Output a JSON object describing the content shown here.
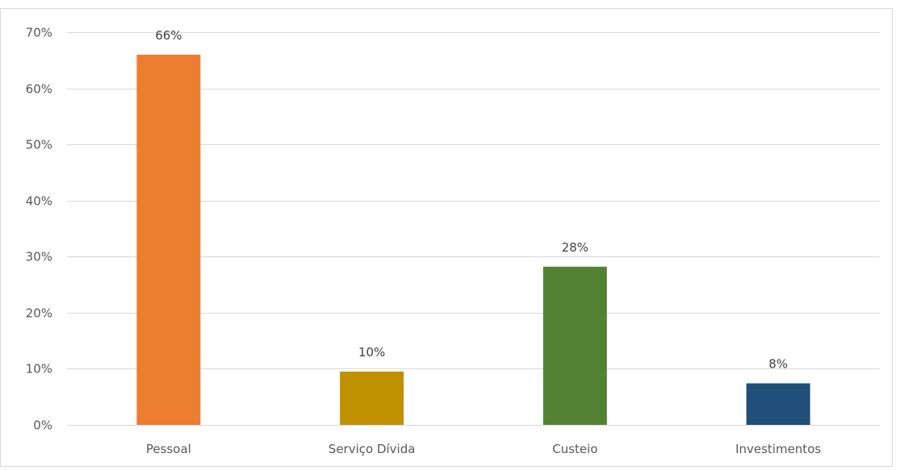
{
  "chart_data": {
    "type": "bar",
    "title": "",
    "xlabel": "",
    "ylabel": "",
    "categories": [
      "Pessoal",
      "Serviço Dívida",
      "Custeio",
      "Investimentos"
    ],
    "values": [
      66,
      10,
      28,
      8
    ],
    "data_labels": [
      "66%",
      "10%",
      "28%",
      "8%"
    ],
    "bar_values_estimated": [
      66,
      9.5,
      28.2,
      7.4
    ],
    "colors": [
      "#ed7d31",
      "#bf9000",
      "#548235",
      "#1f4e79"
    ],
    "ylim": [
      0,
      70
    ],
    "y_ticks": [
      0,
      10,
      20,
      30,
      40,
      50,
      60,
      70
    ],
    "y_tick_labels": [
      "0%",
      "10%",
      "20%",
      "30%",
      "40%",
      "50%",
      "60%",
      "70%"
    ],
    "grid": true,
    "legend": "none"
  }
}
